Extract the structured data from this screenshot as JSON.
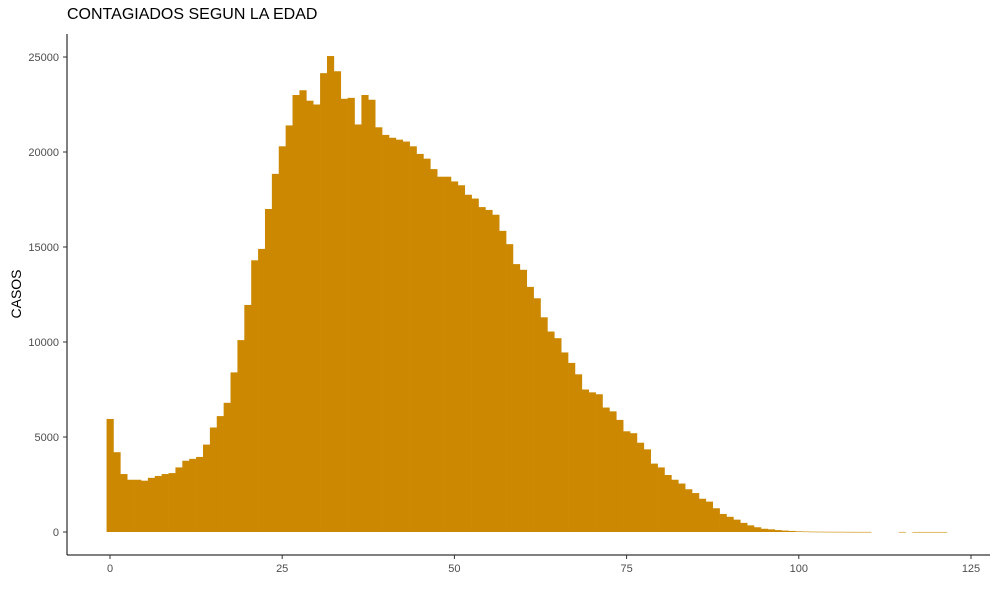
{
  "chart_data": {
    "type": "bar",
    "title": "CONTAGIADOS SEGUN LA EDAD",
    "xlabel": "",
    "ylabel": "CASOS",
    "xlim": [
      -6,
      125
    ],
    "ylim": [
      0,
      25000
    ],
    "x_ticks": [
      0,
      25,
      50,
      75,
      100,
      125
    ],
    "y_ticks": [
      0,
      5000,
      10000,
      15000,
      20000,
      25000
    ],
    "bar_color": "#CC8800",
    "grid": false,
    "x": [
      0,
      1,
      2,
      3,
      4,
      5,
      6,
      7,
      8,
      9,
      10,
      11,
      12,
      13,
      14,
      15,
      16,
      17,
      18,
      19,
      20,
      21,
      22,
      23,
      24,
      25,
      26,
      27,
      28,
      29,
      30,
      31,
      32,
      33,
      34,
      35,
      36,
      37,
      38,
      39,
      40,
      41,
      42,
      43,
      44,
      45,
      46,
      47,
      48,
      49,
      50,
      51,
      52,
      53,
      54,
      55,
      56,
      57,
      58,
      59,
      60,
      61,
      62,
      63,
      64,
      65,
      66,
      67,
      68,
      69,
      70,
      71,
      72,
      73,
      74,
      75,
      76,
      77,
      78,
      79,
      80,
      81,
      82,
      83,
      84,
      85,
      86,
      87,
      88,
      89,
      90,
      91,
      92,
      93,
      94,
      95,
      96,
      97,
      98,
      99,
      100,
      101,
      102,
      103,
      104,
      105,
      106,
      107,
      108,
      109,
      110,
      111,
      112,
      113,
      114,
      115,
      116,
      117,
      118,
      119,
      120,
      121
    ],
    "values": [
      5950,
      4200,
      3050,
      2750,
      2750,
      2700,
      2850,
      2950,
      3050,
      3100,
      3400,
      3750,
      3850,
      3950,
      4600,
      5500,
      6100,
      6800,
      8400,
      10100,
      11950,
      14300,
      14900,
      17000,
      18850,
      20300,
      21400,
      23000,
      23250,
      22700,
      22500,
      24150,
      25050,
      24250,
      22800,
      22850,
      21450,
      23000,
      22750,
      21300,
      20900,
      20750,
      20650,
      20550,
      20300,
      19900,
      19650,
      19100,
      18700,
      18700,
      18450,
      18250,
      17750,
      17550,
      17100,
      16950,
      16700,
      15850,
      15150,
      14100,
      13800,
      12900,
      12300,
      11300,
      10550,
      10200,
      9450,
      8900,
      8300,
      7500,
      7350,
      7250,
      6550,
      6350,
      5900,
      5300,
      5200,
      4700,
      4350,
      3600,
      3400,
      3000,
      2750,
      2550,
      2250,
      2050,
      1750,
      1600,
      1250,
      950,
      800,
      650,
      480,
      350,
      250,
      170,
      140,
      100,
      75,
      55,
      35,
      25,
      20,
      15,
      12,
      10,
      10,
      8,
      6,
      5,
      5,
      0,
      0,
      0,
      0,
      3,
      0,
      3,
      3,
      3,
      3,
      3
    ]
  }
}
